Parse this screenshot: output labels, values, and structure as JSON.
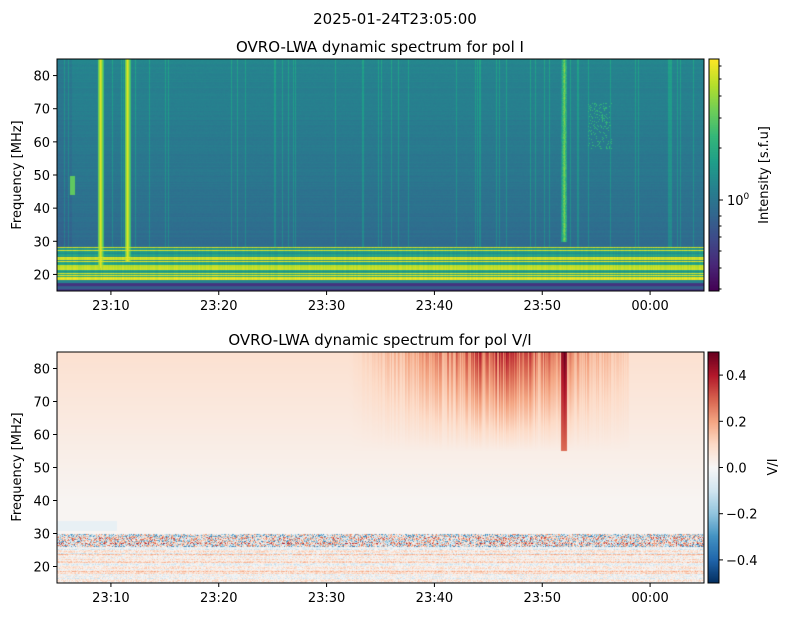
{
  "figure": {
    "suptitle": "2025-01-24T23:05:00"
  },
  "chart_data": [
    {
      "type": "heatmap",
      "title": "OVRO-LWA dynamic spectrum for pol I",
      "ylabel": "Frequency [MHz]",
      "xlabel": "",
      "x_range": [
        "23:05",
        "00:05"
      ],
      "x_ticks": [
        "23:10",
        "23:20",
        "23:30",
        "23:40",
        "23:50",
        "00:00"
      ],
      "ylim": [
        15,
        85
      ],
      "y_ticks": [
        20,
        30,
        40,
        50,
        60,
        70,
        80
      ],
      "colormap": "viridis",
      "colorbar": {
        "label": "Intensity [s.f.u]",
        "scale": "log",
        "range": [
          0.4,
          6.5
        ],
        "tick_label_base": "10",
        "tick_label_exp": "0"
      },
      "features": [
        {
          "kind": "vertical burst",
          "time": "23:09",
          "freq_range": [
            22,
            85
          ]
        },
        {
          "kind": "vertical burst",
          "time": "23:11.5",
          "freq_range": [
            24,
            85
          ]
        },
        {
          "kind": "vertical burst",
          "time": "23:52",
          "freq_range": [
            30,
            85
          ]
        },
        {
          "kind": "bright horizontal bands (RFI)",
          "freq_range": [
            18,
            28
          ]
        }
      ]
    },
    {
      "type": "heatmap",
      "title": "OVRO-LWA dynamic spectrum for pol V/I",
      "ylabel": "Frequency [MHz]",
      "xlabel": "",
      "x_range": [
        "23:05",
        "00:05"
      ],
      "x_ticks": [
        "23:10",
        "23:20",
        "23:30",
        "23:40",
        "23:50",
        "00:00"
      ],
      "ylim": [
        15,
        85
      ],
      "y_ticks": [
        20,
        30,
        40,
        50,
        60,
        70,
        80
      ],
      "colormap": "RdBu_r",
      "colorbar": {
        "label": "V/I",
        "range": [
          -0.5,
          0.5
        ],
        "ticks": [
          "0.4",
          "0.2",
          "0.0",
          "−0.2",
          "−0.4"
        ],
        "tick_values": [
          0.4,
          0.2,
          0.0,
          -0.2,
          -0.4
        ]
      },
      "features": [
        {
          "kind": "positive polarization region",
          "time_range": [
            "23:37",
            "23:55"
          ],
          "freq_range": [
            60,
            85
          ]
        },
        {
          "kind": "noisy mixed-sign stripes",
          "freq_range": [
            15,
            30
          ]
        }
      ]
    }
  ]
}
